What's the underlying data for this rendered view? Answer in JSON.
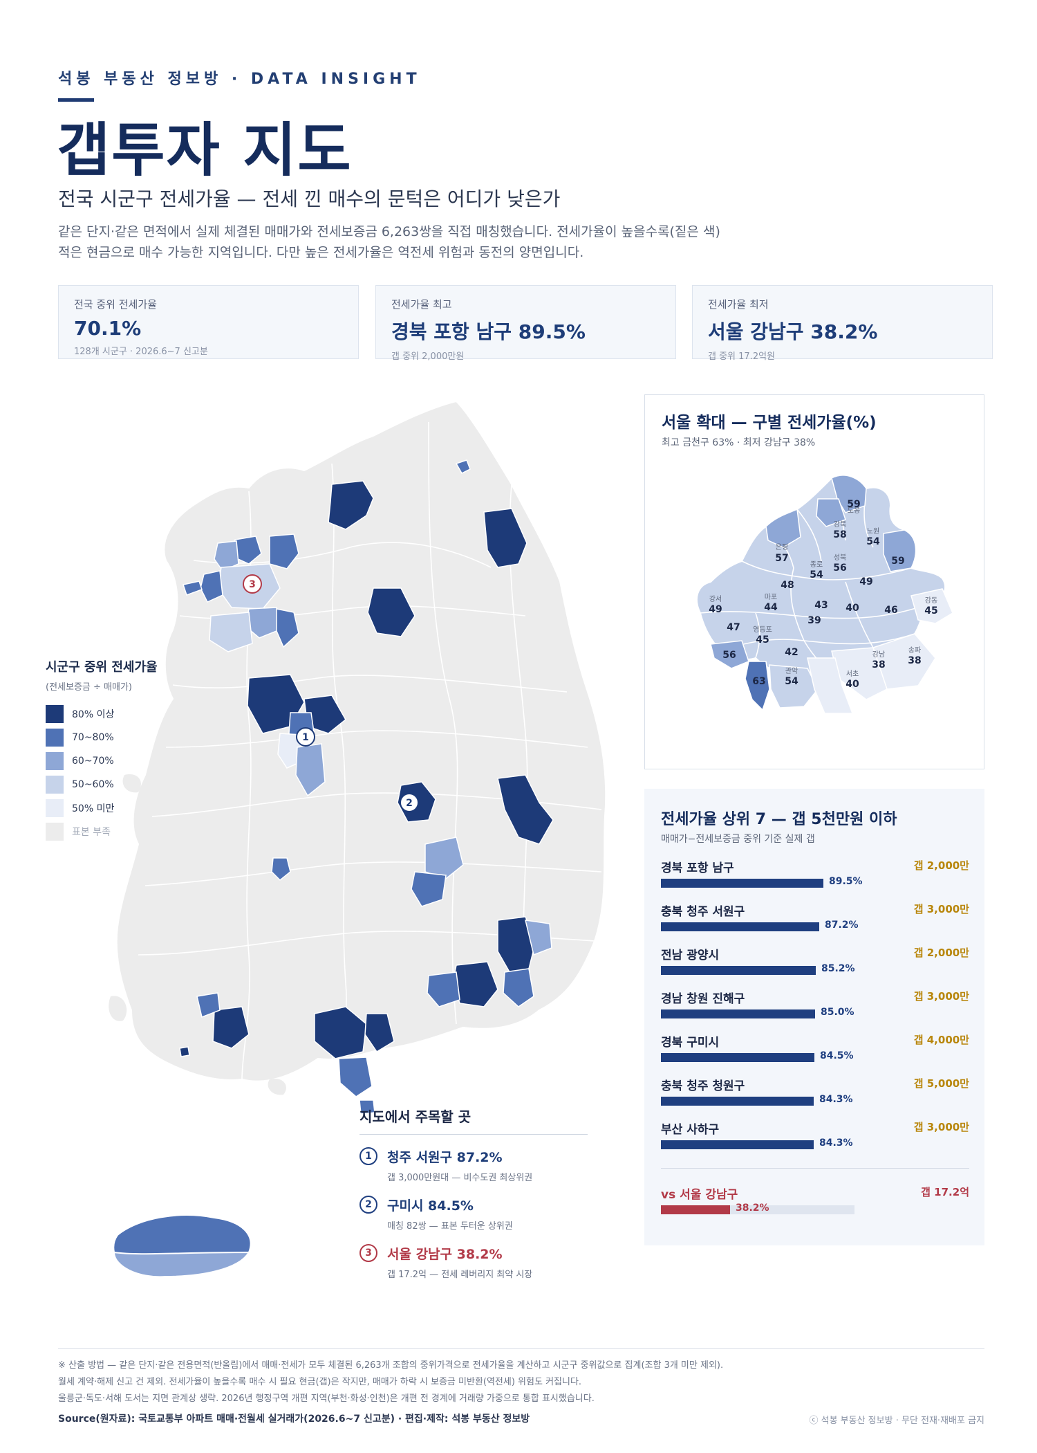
{
  "header": {
    "kicker": "석봉 부동산 정보방 · DATA INSIGHT",
    "title": "갭투자 지도",
    "subtitle": "전국 시군구 전세가율 — 전세 낀 매수의 문턱은 어디가 낮은가",
    "desc_line1": "같은 단지·같은 면적에서 실제 체결된 매매가와 전세보증금 6,263쌍을 직접 매칭했습니다. 전세가율이 높을수록(짙은 색)",
    "desc_line2": "적은 현금으로 매수 가능한 지역입니다. 다만 높은 전세가율은 역전세 위험과 동전의 양면입니다."
  },
  "stats": [
    {
      "label": "전국 중위 전세가율",
      "value": "70.1%",
      "note": "128개 시군구 · 2026.6~7 신고분"
    },
    {
      "label": "전세가율 최고",
      "value": "경북 포항 남구 89.5%",
      "note": "갭 중위 2,000만원"
    },
    {
      "label": "전세가율 최저",
      "value": "서울 강남구 38.2%",
      "note": "갭 중위 17.2억원"
    }
  ],
  "legend": {
    "title": "시군구 중위 전세가율",
    "subtitle": "(전세보증금 ÷ 매매가)",
    "items": [
      {
        "label": "80% 이상",
        "color": "#1d3a78"
      },
      {
        "label": "70~80%",
        "color": "#4f72b5"
      },
      {
        "label": "60~70%",
        "color": "#8ea7d6"
      },
      {
        "label": "50~60%",
        "color": "#c6d3ea"
      },
      {
        "label": "50% 미만",
        "color": "#e8edf7"
      },
      {
        "label": "표본 부족",
        "color": "#ececec"
      }
    ]
  },
  "map_markers": [
    "1",
    "2",
    "3"
  ],
  "seoul": {
    "title": "서울 확대 — 구별 전세가율(%)",
    "subtitle": "최고 금천구 63% · 최저 강남구 38%",
    "districts": [
      {
        "name": "도봉",
        "value": "59"
      },
      {
        "name": "노원",
        "value": "54"
      },
      {
        "name": "강북",
        "value": "58"
      },
      {
        "name": "은평",
        "value": "57"
      },
      {
        "name": "성북",
        "value": "56"
      },
      {
        "name": "종로",
        "value": "54"
      },
      {
        "name": "중랑",
        "value": "59"
      },
      {
        "name": "동대문",
        "value": "49"
      },
      {
        "name": "서대문",
        "value": "48"
      },
      {
        "name": "강서",
        "value": "49"
      },
      {
        "name": "마포",
        "value": "44"
      },
      {
        "name": "중구",
        "value": "43"
      },
      {
        "name": "성동",
        "value": "40"
      },
      {
        "name": "광진",
        "value": "46"
      },
      {
        "name": "강동",
        "value": "45"
      },
      {
        "name": "용산",
        "value": "39"
      },
      {
        "name": "양천",
        "value": "47"
      },
      {
        "name": "영등포",
        "value": "45"
      },
      {
        "name": "구로",
        "value": "56"
      },
      {
        "name": "동작",
        "value": "42"
      },
      {
        "name": "금천",
        "value": "63"
      },
      {
        "name": "관악",
        "value": "54"
      },
      {
        "name": "서초",
        "value": "40"
      },
      {
        "name": "강남",
        "value": "38"
      },
      {
        "name": "송파",
        "value": "38"
      }
    ]
  },
  "ranking": {
    "title": "전세가율 상위 7 — 갭 5천만원 이하",
    "subtitle": "매매가−전세보증금 중위 기준 실제 갭",
    "items": [
      {
        "name": "경북 포항 남구",
        "ratio": 89.5,
        "label": "89.5%",
        "gap": "갭 2,000만"
      },
      {
        "name": "충북 청주 서원구",
        "ratio": 87.2,
        "label": "87.2%",
        "gap": "갭 3,000만"
      },
      {
        "name": "전남 광양시",
        "ratio": 85.2,
        "label": "85.2%",
        "gap": "갭 2,000만"
      },
      {
        "name": "경남 창원 진해구",
        "ratio": 85.0,
        "label": "85.0%",
        "gap": "갭 3,000만"
      },
      {
        "name": "경북 구미시",
        "ratio": 84.5,
        "label": "84.5%",
        "gap": "갭 4,000만"
      },
      {
        "name": "충북 청주 청원구",
        "ratio": 84.3,
        "label": "84.3%",
        "gap": "갭 5,000만"
      },
      {
        "name": "부산 사하구",
        "ratio": 84.3,
        "label": "84.3%",
        "gap": "갭 3,000만"
      }
    ],
    "vs": {
      "name": "vs 서울 강남구",
      "ratio": 38.2,
      "label": "38.2%",
      "gap": "갭 17.2억"
    }
  },
  "notes": {
    "title": "지도에서 주목할 곳",
    "items": [
      {
        "num": "1",
        "head": "청주 서원구 87.2%",
        "desc": "갭 3,000만원대 — 비수도권 최상위권"
      },
      {
        "num": "2",
        "head": "구미시 84.5%",
        "desc": "매칭 82쌍 — 표본 두터운 상위권"
      },
      {
        "num": "3",
        "head": "서울 강남구 38.2%",
        "desc": "갭 17.2억 — 전세 레버리지 최약 시장"
      }
    ]
  },
  "footer": {
    "method1": "※ 산출 방법 — 같은 단지·같은 전용면적(반올림)에서 매매·전세가 모두 체결된 6,263개 조합의 중위가격으로 전세가율을 계산하고 시군구 중위값으로 집계(조합 3개 미만 제외).",
    "method2": "월세 계약·해제 신고 건 제외. 전세가율이 높을수록 매수 시 필요 현금(갭)은 작지만, 매매가 하락 시 보증금 미반환(역전세) 위험도 커집니다.",
    "method3": "울릉군·독도·서해 도서는 지면 관계상 생략. 2026년 행정구역 개편 지역(부천·화성·인천)은 개편 전 경계에 거래량 가중으로 통합 표시했습니다.",
    "source": "Source(원자료): 국토교통부 아파트 매매·전월세 실거래가(2026.6~7 신고분) · 편집·제작: 석봉 부동산 정보방",
    "copyright": "ⓒ 석봉 부동산 정보방 · 무단 전재·재배포 금지"
  }
}
